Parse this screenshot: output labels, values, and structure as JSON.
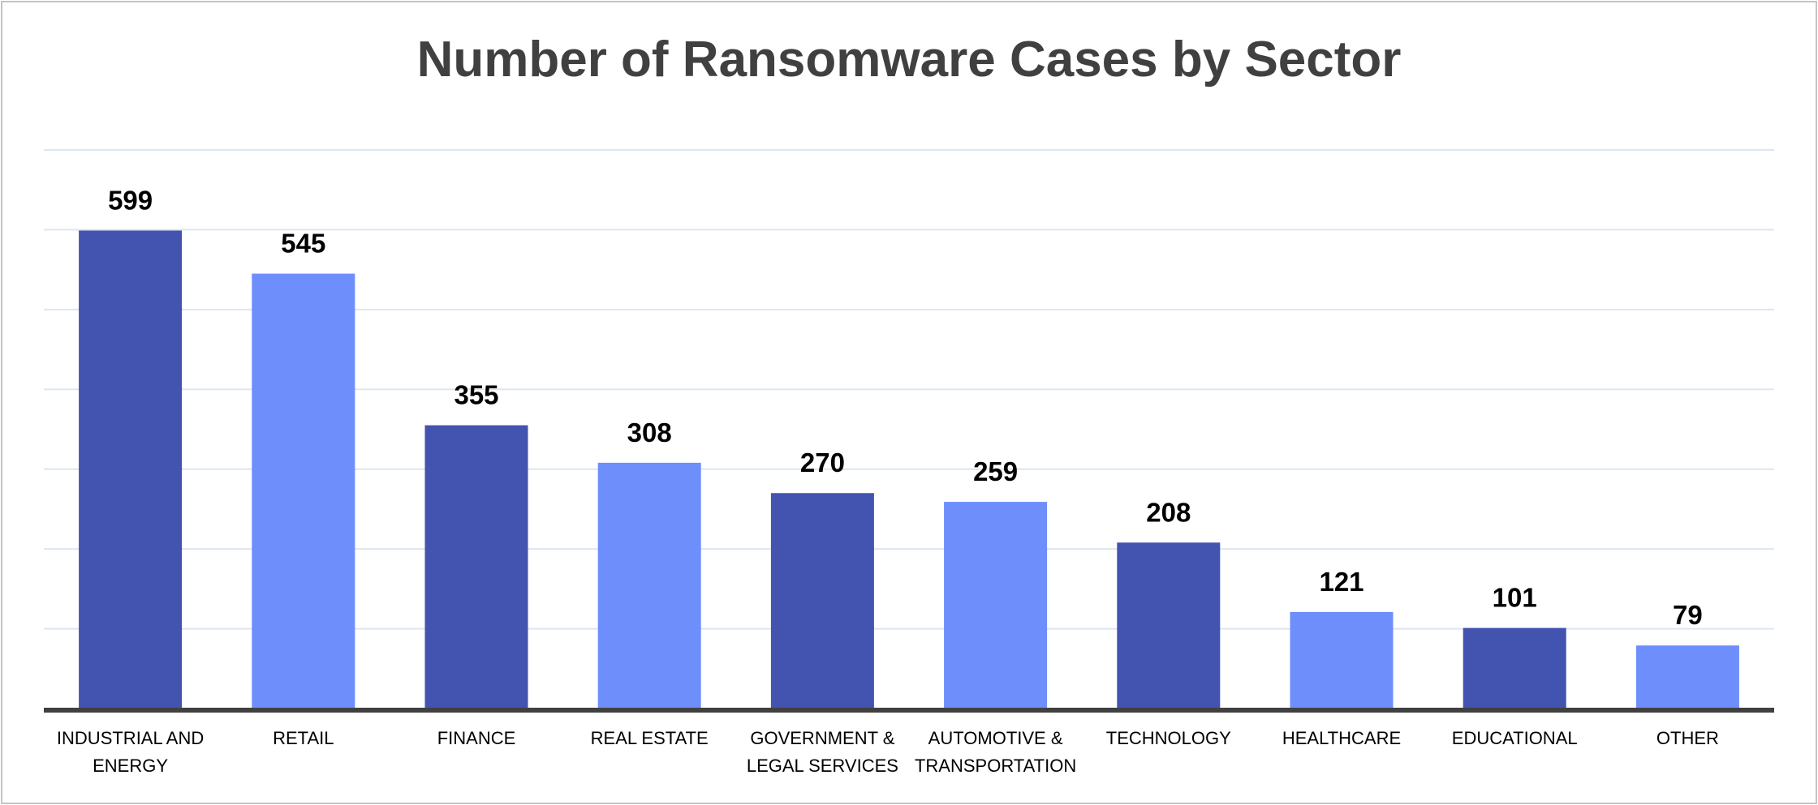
{
  "chart_data": {
    "type": "bar",
    "title": "Number of Ransomware Cases by Sector",
    "xlabel": "",
    "ylabel": "",
    "ylim": [
      0,
      700
    ],
    "grid": true,
    "y_ticks_shown": false,
    "categories": [
      [
        "INDUSTRIAL AND",
        "ENERGY"
      ],
      [
        "RETAIL"
      ],
      [
        "FINANCE"
      ],
      [
        "REAL ESTATE"
      ],
      [
        "GOVERNMENT &",
        "LEGAL SERVICES"
      ],
      [
        "AUTOMOTIVE &",
        "TRANSPORTATION"
      ],
      [
        "TECHNOLOGY"
      ],
      [
        "HEALTHCARE"
      ],
      [
        "EDUCATIONAL"
      ],
      [
        "OTHER"
      ]
    ],
    "values": [
      599,
      545,
      355,
      308,
      270,
      259,
      208,
      121,
      101,
      79
    ],
    "colors": {
      "dark": "#4353b0",
      "light": "#6e8efb",
      "grid": "#dde6f1",
      "axis": "#404040",
      "title": "#404040"
    }
  }
}
